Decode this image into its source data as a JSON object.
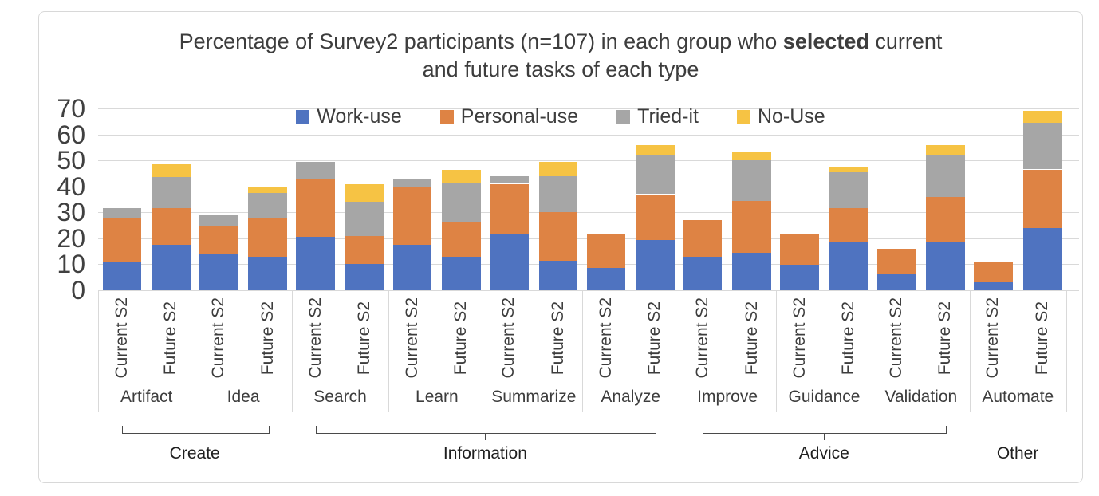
{
  "title": {
    "line1_prefix": "Percentage of Survey2 participants (n=107) in each group who ",
    "line1_bold": "selected",
    "line1_suffix": " current",
    "line2": "and future tasks of each type"
  },
  "legend": {
    "items": [
      {
        "label": "Work-use",
        "color": "#4F73C0"
      },
      {
        "label": "Personal-use",
        "color": "#DE8344"
      },
      {
        "label": "Tried-it",
        "color": "#A6A6A6"
      },
      {
        "label": "No-Use",
        "color": "#F6C344"
      }
    ]
  },
  "colors": {
    "work_use": "#4F73C0",
    "personal_use": "#DE8344",
    "tried_it": "#A6A6A6",
    "no_use": "#F6C344",
    "gridline": "#d9d9d9",
    "text": "#3d3d3d"
  },
  "chart_data": {
    "type": "bar",
    "stacked": true,
    "title": "Percentage of Survey2 participants (n=107) in each group who selected current and future tasks of each type",
    "xlabel": "",
    "ylabel": "",
    "ylim": [
      0,
      70
    ],
    "y_ticks": [
      0,
      10,
      20,
      30,
      40,
      50,
      60,
      70
    ],
    "grid": "horizontal",
    "legend_position": "top-center",
    "bar_labels": [
      "Current S2",
      "Future S2"
    ],
    "categories": [
      "Artifact",
      "Idea",
      "Search",
      "Learn",
      "Summarize",
      "Analyze",
      "Improve",
      "Guidance",
      "Validation",
      "Automate"
    ],
    "groups": [
      {
        "label": "Create",
        "from_category": 0,
        "to_category": 1,
        "bracket": true
      },
      {
        "label": "Information",
        "from_category": 2,
        "to_category": 5,
        "bracket": true
      },
      {
        "label": "Advice",
        "from_category": 6,
        "to_category": 8,
        "bracket": true
      },
      {
        "label": "Other",
        "from_category": 9,
        "to_category": 9,
        "bracket": false
      }
    ],
    "series": [
      {
        "name": "Work-use",
        "color": "#4F73C0",
        "values": [
          11,
          17.5,
          14,
          13,
          20.5,
          10,
          17.5,
          13,
          21.5,
          11.5,
          8.5,
          19.5,
          13,
          14.5,
          10,
          18.5,
          6.5,
          18.5,
          3,
          24
        ]
      },
      {
        "name": "Personal-use",
        "color": "#DE8344",
        "values": [
          17,
          14,
          10.5,
          15,
          22.5,
          11,
          22.5,
          13,
          19.5,
          18.5,
          13,
          17.5,
          14,
          20,
          11.5,
          13,
          9.5,
          17.5,
          8,
          22.5
        ]
      },
      {
        "name": "Tried-it",
        "color": "#A6A6A6",
        "values": [
          3.5,
          12,
          4.5,
          9.5,
          6.5,
          13,
          3,
          15.5,
          3,
          14,
          0,
          15,
          0,
          15.5,
          0,
          14,
          0,
          16,
          0,
          18
        ]
      },
      {
        "name": "No-Use",
        "color": "#F6C344",
        "values": [
          0,
          5,
          0,
          2,
          0,
          7,
          0,
          5,
          0,
          5.5,
          0,
          4,
          0,
          3,
          0,
          2,
          0,
          4,
          0,
          4.5
        ]
      }
    ]
  }
}
